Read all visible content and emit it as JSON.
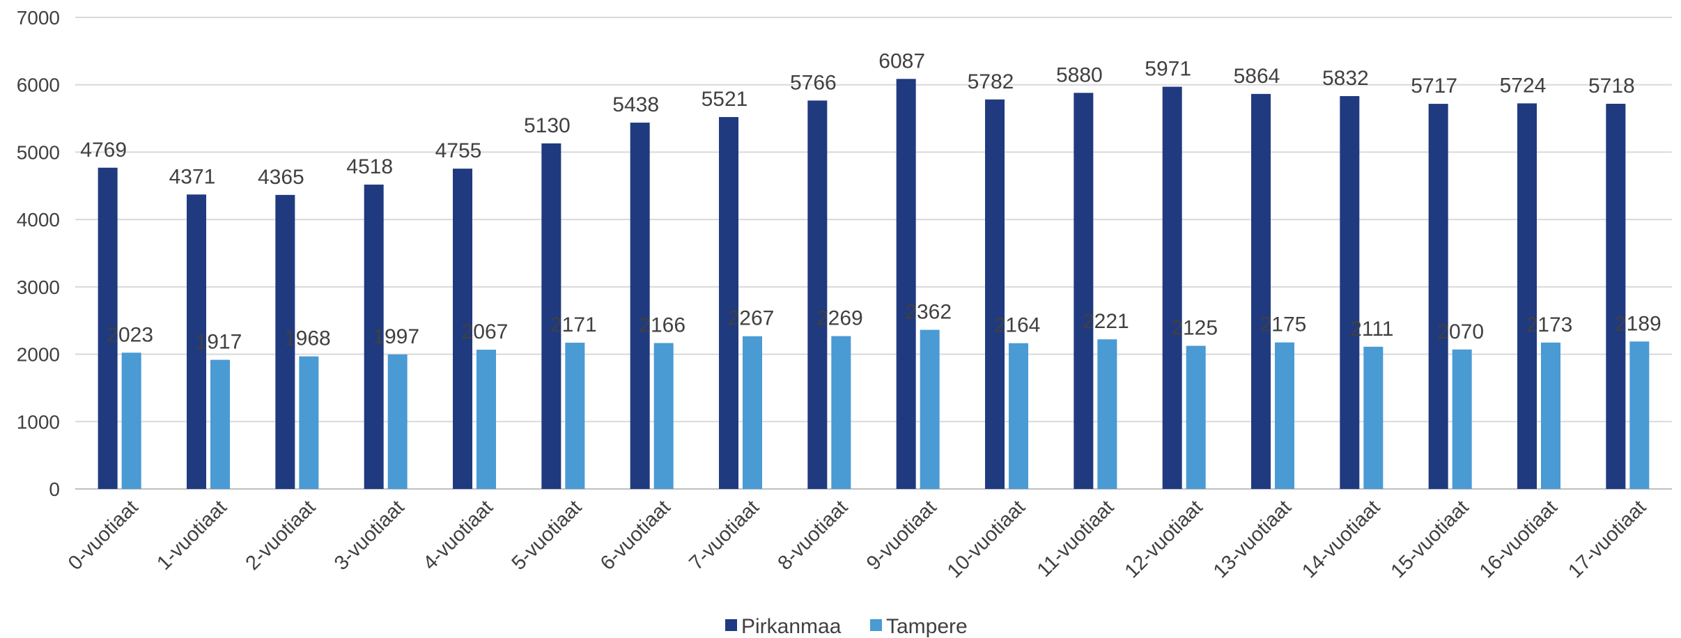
{
  "chart_data": {
    "type": "bar",
    "categories": [
      "0-vuotiaat",
      "1-vuotiaat",
      "2-vuotiaat",
      "3-vuotiaat",
      "4-vuotiaat",
      "5-vuotiaat",
      "6-vuotiaat",
      "7-vuotiaat",
      "8-vuotiaat",
      "9-vuotiaat",
      "10-vuotiaat",
      "11-vuotiaat",
      "12-vuotiaat",
      "13-vuotiaat",
      "14-vuotiaat",
      "15-vuotiaat",
      "16-vuotiaat",
      "17-vuotiaat"
    ],
    "series": [
      {
        "name": "Pirkanmaa",
        "color": "#203A80",
        "values": [
          4769,
          4371,
          4365,
          4518,
          4755,
          5130,
          5438,
          5521,
          5766,
          6087,
          5782,
          5880,
          5971,
          5864,
          5832,
          5717,
          5724,
          5718
        ]
      },
      {
        "name": "Tampere",
        "color": "#4A9AD4",
        "values": [
          2023,
          1917,
          1968,
          1997,
          2067,
          2171,
          2166,
          2267,
          2269,
          2362,
          2164,
          2221,
          2125,
          2175,
          2111,
          2070,
          2173,
          2189
        ]
      }
    ],
    "ylim": [
      0,
      7000
    ],
    "yticks": [
      0,
      1000,
      2000,
      3000,
      4000,
      5000,
      6000,
      7000
    ],
    "grid": true,
    "legend": "bottom-center",
    "data_labels": true
  }
}
